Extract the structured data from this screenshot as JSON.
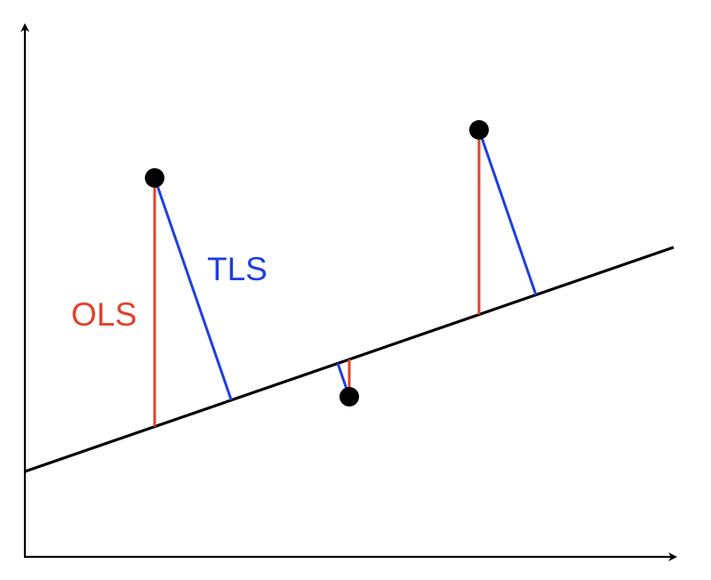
{
  "labels": {
    "ols": "OLS",
    "tls": "TLS"
  },
  "colors": {
    "axis": "#000000",
    "fit_line": "#000000",
    "ols_residual": "#e2412c",
    "tls_residual": "#1f3fe0",
    "point": "#000000"
  },
  "regression": {
    "slope": 0.42,
    "intercept": 0.16
  },
  "points": [
    {
      "x": 0.2,
      "y": 0.71
    },
    {
      "x": 0.5,
      "y": 0.3
    },
    {
      "x": 0.7,
      "y": 0.8
    }
  ]
}
